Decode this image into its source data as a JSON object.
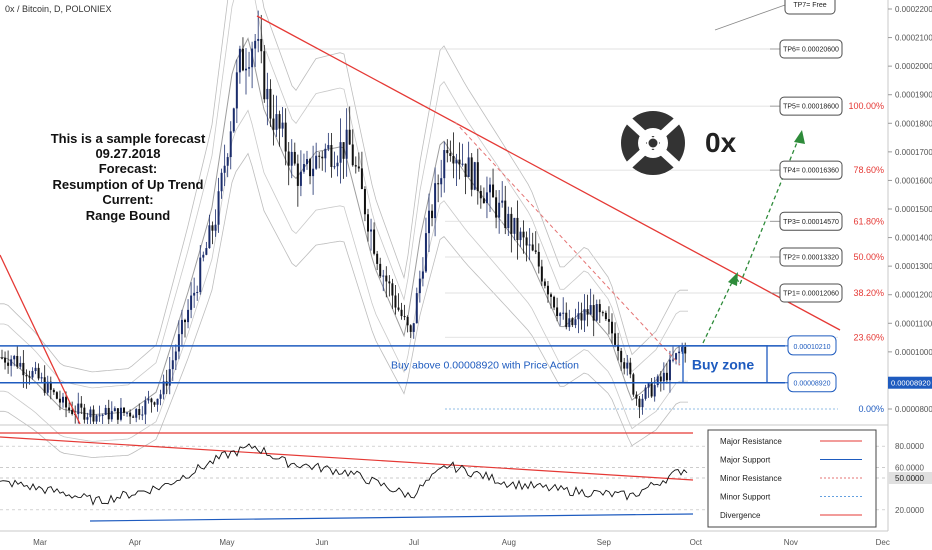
{
  "header": {
    "title": "0x / Bitcoin, D, POLONIEX"
  },
  "annotation": {
    "lines": [
      "This is a sample forecast",
      "09.27.2018",
      "Forecast:",
      "Resumption of Up Trend",
      "Current:",
      "Range Bound"
    ]
  },
  "logo": {
    "text": "0x",
    "icon": "0x-logo-icon"
  },
  "buy_zone": {
    "label": "Buy zone",
    "note": "Buy above 0.00008920 with Price Action",
    "upper_label": "0.00010210",
    "lower_label": "0.00008920",
    "upper": 0.0001021,
    "lower": 8.92e-05
  },
  "targets": [
    {
      "label": "TP7= Free"
    },
    {
      "label": "TP6= 0.00020600",
      "value": 0.000206
    },
    {
      "label": "TP5= 0.00018600",
      "value": 0.000186
    },
    {
      "label": "TP4= 0.00016360",
      "value": 0.0001636
    },
    {
      "label": "TP3= 0.00014570",
      "value": 0.0001457
    },
    {
      "label": "TP2= 0.00013320",
      "value": 0.0001332
    },
    {
      "label": "TP1= 0.00012060",
      "value": 0.0001206
    }
  ],
  "fib_levels": [
    {
      "label": "100.00%",
      "value": 0.000186
    },
    {
      "label": "78.60%",
      "value": 0.0001636
    },
    {
      "label": "61.80%",
      "value": 0.0001457
    },
    {
      "label": "50.00%",
      "value": 0.0001332
    },
    {
      "label": "38.20%",
      "value": 0.0001206
    },
    {
      "label": "23.60%",
      "value": 0.0001051
    },
    {
      "label": "0.00%",
      "value": 8e-05
    }
  ],
  "price_axis": {
    "ticks": [
      "0.00022000",
      "0.00021000",
      "0.00020000",
      "0.00019000",
      "0.00018000",
      "0.00017000",
      "0.00016000",
      "0.00015000",
      "0.00014000",
      "0.00013000",
      "0.00012000",
      "0.00011000",
      "0.00010000",
      "0.00008000"
    ],
    "current_label": "0.00008920",
    "current_value": 8.92e-05
  },
  "rsi_axis": {
    "ticks": [
      "80.0000",
      "60.0000",
      "20.0000"
    ],
    "current_label": "50.0000",
    "current_value": 50
  },
  "x_axis": {
    "ticks": [
      "Mar",
      "Apr",
      "May",
      "Jun",
      "Jul",
      "Aug",
      "Sep",
      "Oct",
      "Nov",
      "Dec"
    ]
  },
  "legend": {
    "items": [
      {
        "label": "Major Resistance",
        "color": "#e53935",
        "style": "solid"
      },
      {
        "label": "Major Support",
        "color": "#1e5bbf",
        "style": "solid"
      },
      {
        "label": "Minor Resistance",
        "color": "#e57373",
        "style": "dotted"
      },
      {
        "label": "Minor Support",
        "color": "#64a0e0",
        "style": "dotted"
      },
      {
        "label": "Divergence",
        "color": "#e53935",
        "style": "solid"
      }
    ]
  },
  "colors": {
    "support": "#1e5bbf",
    "resistance": "#e53935",
    "forecast_arrow": "#2e8b3a",
    "candle_up": "#1a2c6b",
    "candle_down": "#111111"
  },
  "chart_data": {
    "type": "candlestick",
    "title": "0x / Bitcoin, D, POLONIEX",
    "ylim": [
      7.8e-05,
      0.000222
    ],
    "price_path": [
      [
        "2018-02-20",
        9.8e-05
      ],
      [
        "2018-03-01",
        9e-05
      ],
      [
        "2018-03-10",
        8e-05
      ],
      [
        "2018-03-20",
        7.8e-05
      ],
      [
        "2018-04-01",
        7.9e-05
      ],
      [
        "2018-04-10",
        8.6e-05
      ],
      [
        "2018-04-20",
        0.00012
      ],
      [
        "2018-04-28",
        0.00015
      ],
      [
        "2018-05-05",
        0.0002
      ],
      [
        "2018-05-10",
        0.00021
      ],
      [
        "2018-05-15",
        0.000185
      ],
      [
        "2018-05-25",
        0.00016
      ],
      [
        "2018-06-01",
        0.00017
      ],
      [
        "2018-06-10",
        0.000172
      ],
      [
        "2018-06-20",
        0.00013
      ],
      [
        "2018-06-30",
        0.000105
      ],
      [
        "2018-07-05",
        0.00014
      ],
      [
        "2018-07-12",
        0.000175
      ],
      [
        "2018-07-20",
        0.000162
      ],
      [
        "2018-08-01",
        0.000145
      ],
      [
        "2018-08-10",
        0.000132
      ],
      [
        "2018-08-20",
        0.000108
      ],
      [
        "2018-08-28",
        0.000115
      ],
      [
        "2018-09-05",
        0.000105
      ],
      [
        "2018-09-12",
        8.3e-05
      ],
      [
        "2018-09-20",
        9e-05
      ],
      [
        "2018-09-27",
        0.000102
      ]
    ],
    "rsi_path": [
      [
        "2018-02-20",
        45
      ],
      [
        "2018-03-10",
        35
      ],
      [
        "2018-03-20",
        28
      ],
      [
        "2018-04-10",
        42
      ],
      [
        "2018-05-01",
        72
      ],
      [
        "2018-05-10",
        80
      ],
      [
        "2018-05-20",
        65
      ],
      [
        "2018-06-10",
        55
      ],
      [
        "2018-06-30",
        33
      ],
      [
        "2018-07-12",
        62
      ],
      [
        "2018-08-01",
        45
      ],
      [
        "2018-08-20",
        38
      ],
      [
        "2018-09-10",
        33
      ],
      [
        "2018-09-27",
        58
      ]
    ]
  }
}
